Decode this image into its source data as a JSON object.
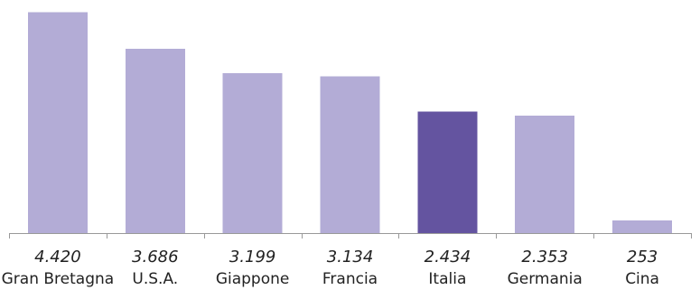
{
  "chart_data": {
    "type": "bar",
    "categories": [
      "Gran Bretagna",
      "U.S.A.",
      "Giappone",
      "Francia",
      "Italia",
      "Germania",
      "Cina"
    ],
    "values": [
      4420,
      3686,
      3199,
      3134,
      2434,
      2353,
      253
    ],
    "value_labels": [
      "4.420",
      "3.686",
      "3.199",
      "3.134",
      "2.434",
      "2.353",
      "253"
    ],
    "highlight_category": "Italia",
    "ylim": [
      0,
      4700
    ],
    "grid": false,
    "legend": "none",
    "colors": {
      "bar": "#b3acd6",
      "highlight": "#6454a0",
      "axis": "#999999"
    }
  }
}
